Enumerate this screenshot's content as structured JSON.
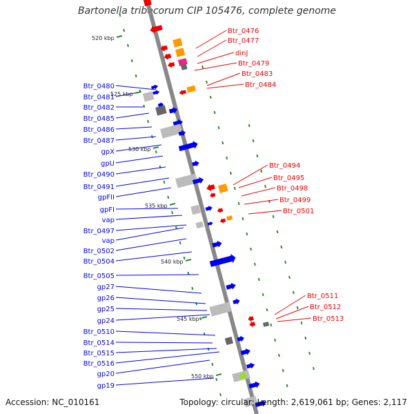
{
  "title": "Bartonella tribocorum CIP 105476, complete genome",
  "footer": {
    "accession": "Accession: NC_010161",
    "summary": "Topology: circular; Length: 2,619,061 bp; Genes: 2,117"
  },
  "colors": {
    "forward": "#0000ee",
    "reverse": "#ee0000",
    "backbone": "#888888",
    "tick": "#2a8a2a",
    "orange": "#ff9900",
    "magenta": "#ee2288",
    "gray": "#bbbbbb",
    "dark": "#666666",
    "lime": "#99dd33"
  },
  "scale_labels": [
    "520 kbp",
    "525 kbp",
    "530 kbp",
    "535 kbp",
    "540 kbp",
    "545 kbp",
    "550 kbp"
  ],
  "left_labels": [
    "Btr_0480",
    "Btr_0481",
    "Btr_0482",
    "Btr_0485",
    "Btr_0486",
    "Btr_0487",
    "gpX",
    "gpU",
    "Btr_0490",
    "Btr_0491",
    "gpFII",
    "gpFI",
    "vap",
    "Btr_0497",
    "vap",
    "Btr_0502",
    "Btr_0504",
    "Btr_0505",
    "gp27",
    "gp26",
    "gp25",
    "gp24",
    "Btr_0510",
    "Btr_0514",
    "Btr_0515",
    "Btr_0516",
    "gp20",
    "gp19"
  ],
  "right_labels": [
    "Btr_0476",
    "Btr_0477",
    "dinJ",
    "Btr_0479",
    "Btr_0483",
    "Btr_0484",
    "Btr_0494",
    "Btr_0495",
    "Btr_0498",
    "Btr_0499",
    "Btr_0501",
    "Btr_0511",
    "Btr_0512",
    "Btr_0513"
  ]
}
